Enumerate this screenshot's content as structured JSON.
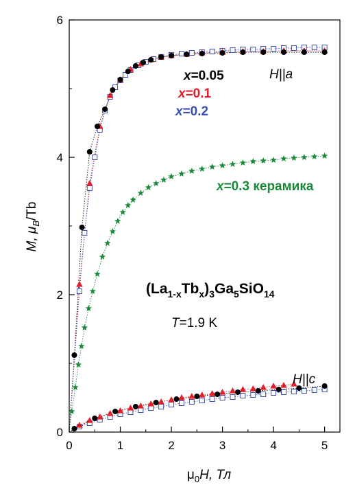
{
  "chart_data": {
    "type": "scatter",
    "title": "",
    "xlabel": {
      "pre": "μ",
      "sub": "0",
      "post": "H, Тл"
    },
    "ylabel": {
      "pre": "M, μ",
      "sub": "B",
      "post": "/Tb"
    },
    "xlim": [
      0,
      5.3
    ],
    "ylim": [
      0,
      6
    ],
    "xticks": [
      0,
      1,
      2,
      3,
      4,
      5
    ],
    "yticks": [
      0,
      2,
      4,
      6
    ],
    "grid": false,
    "annotations": {
      "h_a": "H||a",
      "h_c": "H||c",
      "x005": "x=0.05",
      "x01": "x=0.1",
      "x02": "x=0.2",
      "x03": "x=0.3 керамика",
      "formula": "(La1-xTbx)3Ga5SiO14",
      "temperature": "T=1.9 K"
    },
    "colors": {
      "black": "#000000",
      "red": "#e0202a",
      "blue": "#3a4fb0",
      "green": "#1a8a3a"
    },
    "series": [
      {
        "name": "x=0.05",
        "orientation": "H||a",
        "marker": "filled-circle",
        "color": "#000000",
        "x": [
          0.1,
          0.25,
          0.4,
          0.55,
          0.7,
          0.85,
          1.0,
          1.15,
          1.3,
          1.45,
          1.6,
          1.8,
          2.0,
          2.3,
          2.6,
          3.0,
          3.4,
          3.8,
          4.2,
          4.6,
          5.0
        ],
        "y": [
          1.12,
          2.98,
          4.08,
          4.45,
          4.7,
          4.98,
          5.13,
          5.25,
          5.33,
          5.38,
          5.42,
          5.46,
          5.48,
          5.5,
          5.51,
          5.52,
          5.53,
          5.53,
          5.53,
          5.53,
          5.53
        ]
      },
      {
        "name": "x=0.1",
        "orientation": "H||a",
        "marker": "filled-triangle",
        "color": "#e0202a",
        "x": [
          0.2,
          0.4,
          0.6,
          0.8,
          1.0,
          1.2,
          1.4,
          1.6,
          1.8,
          2.0,
          2.3,
          2.6,
          3.0,
          3.4,
          3.8,
          4.2,
          4.6,
          5.0
        ],
        "y": [
          2.15,
          3.62,
          4.45,
          4.9,
          5.13,
          5.28,
          5.36,
          5.42,
          5.46,
          5.48,
          5.5,
          5.52,
          5.53,
          5.54,
          5.54,
          5.55,
          5.55,
          5.55
        ]
      },
      {
        "name": "x=0.2",
        "orientation": "H||a",
        "marker": "open-square",
        "color": "#3a4fb0",
        "x": [
          0.2,
          0.3,
          0.4,
          0.5,
          0.6,
          0.7,
          0.8,
          0.9,
          1.0,
          1.1,
          1.2,
          1.35,
          1.5,
          1.65,
          1.8,
          2.0,
          2.2,
          2.4,
          2.6,
          2.8,
          3.0,
          3.2,
          3.4,
          3.6,
          3.8,
          4.0,
          4.2,
          4.4,
          4.6,
          4.8,
          5.0
        ],
        "y": [
          2.05,
          2.9,
          3.55,
          4.0,
          4.4,
          4.68,
          4.88,
          5.02,
          5.12,
          5.2,
          5.27,
          5.34,
          5.39,
          5.43,
          5.46,
          5.49,
          5.51,
          5.52,
          5.53,
          5.54,
          5.55,
          5.56,
          5.57,
          5.57,
          5.58,
          5.58,
          5.59,
          5.59,
          5.6,
          5.6,
          5.6
        ]
      },
      {
        "name": "x=0.3 керамика",
        "orientation": "H||a",
        "marker": "star",
        "color": "#1a8a3a",
        "x": [
          0.05,
          0.12,
          0.18,
          0.24,
          0.3,
          0.38,
          0.46,
          0.55,
          0.65,
          0.75,
          0.85,
          0.95,
          1.05,
          1.15,
          1.25,
          1.4,
          1.55,
          1.7,
          1.85,
          2.0,
          2.2,
          2.4,
          2.6,
          2.8,
          3.0,
          3.2,
          3.4,
          3.6,
          3.8,
          4.0,
          4.2,
          4.4,
          4.6,
          4.8,
          5.0
        ],
        "y": [
          0.3,
          0.65,
          0.98,
          1.25,
          1.52,
          1.8,
          2.05,
          2.3,
          2.55,
          2.75,
          2.92,
          3.07,
          3.2,
          3.3,
          3.38,
          3.48,
          3.56,
          3.62,
          3.67,
          3.72,
          3.76,
          3.8,
          3.83,
          3.86,
          3.88,
          3.9,
          3.92,
          3.94,
          3.95,
          3.96,
          3.98,
          3.99,
          4.0,
          4.01,
          4.02
        ]
      },
      {
        "name": "x=0.05",
        "orientation": "H||c",
        "marker": "filled-circle",
        "color": "#000000",
        "x": [
          0.1,
          0.5,
          0.9,
          1.3,
          1.7,
          2.1,
          2.5,
          2.9,
          3.3,
          3.7,
          4.1,
          4.5,
          5.0
        ],
        "y": [
          0.05,
          0.2,
          0.3,
          0.37,
          0.43,
          0.48,
          0.52,
          0.55,
          0.58,
          0.6,
          0.62,
          0.64,
          0.67
        ]
      },
      {
        "name": "x=0.1",
        "orientation": "H||c",
        "marker": "filled-triangle",
        "color": "#e0202a",
        "x": [
          0.2,
          0.4,
          0.6,
          0.8,
          1.0,
          1.2,
          1.4,
          1.6,
          1.8,
          2.0,
          2.2,
          2.4,
          2.6,
          2.8,
          3.0,
          3.2,
          3.4,
          3.6,
          3.8,
          4.0,
          4.2,
          4.4
        ],
        "y": [
          0.1,
          0.17,
          0.22,
          0.27,
          0.31,
          0.35,
          0.38,
          0.41,
          0.44,
          0.47,
          0.5,
          0.52,
          0.54,
          0.56,
          0.58,
          0.6,
          0.62,
          0.63,
          0.65,
          0.67,
          0.68,
          0.7
        ]
      },
      {
        "name": "x=0.2",
        "orientation": "H||c",
        "marker": "open-square",
        "color": "#3a4fb0",
        "x": [
          0.2,
          0.4,
          0.6,
          0.8,
          1.0,
          1.2,
          1.4,
          1.6,
          1.8,
          2.0,
          2.2,
          2.4,
          2.6,
          2.8,
          3.0,
          3.2,
          3.4,
          3.6,
          3.8,
          4.0,
          4.2,
          4.4,
          4.6,
          4.8,
          5.0
        ],
        "y": [
          0.08,
          0.13,
          0.18,
          0.22,
          0.26,
          0.29,
          0.32,
          0.35,
          0.37,
          0.4,
          0.42,
          0.44,
          0.46,
          0.48,
          0.5,
          0.51,
          0.53,
          0.54,
          0.55,
          0.57,
          0.58,
          0.59,
          0.6,
          0.61,
          0.62
        ]
      }
    ]
  }
}
